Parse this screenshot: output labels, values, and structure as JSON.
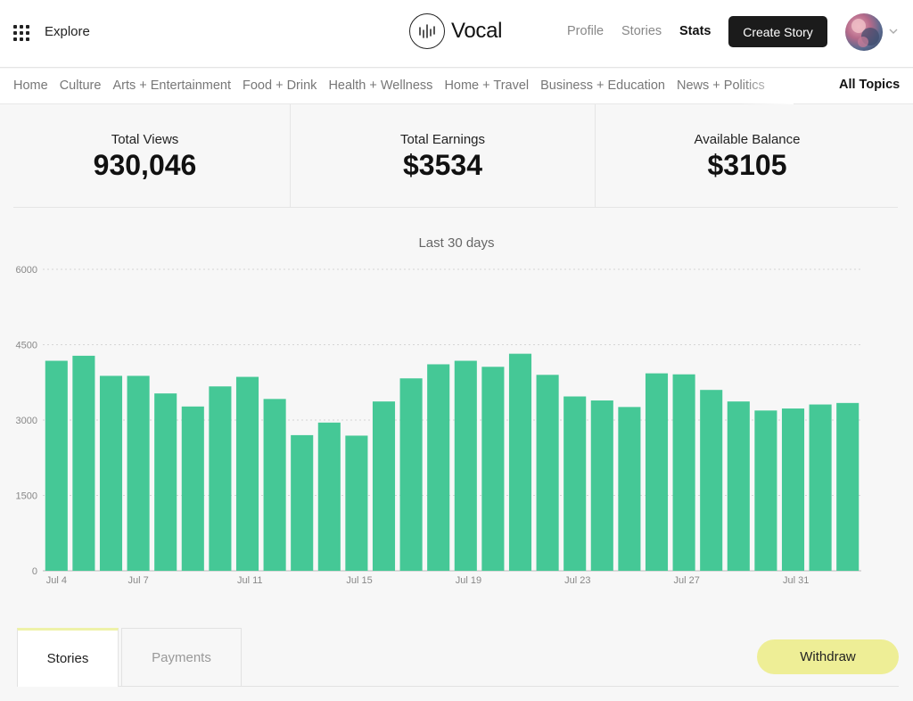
{
  "header": {
    "explore_label": "Explore",
    "logo_text": "Vocal",
    "nav": [
      {
        "label": "Profile"
      },
      {
        "label": "Stories"
      },
      {
        "label": "Stats"
      }
    ],
    "create_story_label": "Create Story"
  },
  "topics": {
    "items": [
      "Home",
      "Culture",
      "Arts + Entertainment",
      "Food + Drink",
      "Health + Wellness",
      "Home + Travel",
      "Business + Education",
      "News + Politics"
    ],
    "all_topics_label": "All Topics"
  },
  "stats": {
    "total_views": {
      "label": "Total Views",
      "value": "930,046"
    },
    "total_earnings": {
      "label": "Total Earnings",
      "value": "$3534"
    },
    "available_balance": {
      "label": "Available Balance",
      "value": "$3105"
    }
  },
  "chart_data": {
    "type": "bar",
    "title": "Last 30 days",
    "categories": [
      "Jul 4",
      "Jul 5",
      "Jul 6",
      "Jul 7",
      "Jul 8",
      "Jul 9",
      "Jul 10",
      "Jul 11",
      "Jul 12",
      "Jul 13",
      "Jul 14",
      "Jul 15",
      "Jul 16",
      "Jul 17",
      "Jul 18",
      "Jul 19",
      "Jul 20",
      "Jul 21",
      "Jul 22",
      "Jul 23",
      "Jul 24",
      "Jul 25",
      "Jul 26",
      "Jul 27",
      "Jul 28",
      "Jul 29",
      "Jul 30",
      "Jul 31",
      "Aug 1",
      "Aug 2"
    ],
    "values": [
      4180,
      4280,
      3880,
      3880,
      3530,
      3270,
      3670,
      3860,
      3420,
      2700,
      2950,
      2690,
      3370,
      3830,
      4110,
      4180,
      4060,
      4320,
      3900,
      3470,
      3390,
      3260,
      3930,
      3910,
      3600,
      3370,
      3190,
      3230,
      3310,
      3340
    ],
    "x_tick_labels": [
      "Jul 4",
      "Jul 7",
      "Jul 11",
      "Jul 15",
      "Jul 19",
      "Jul 23",
      "Jul 27",
      "Jul 31"
    ],
    "y_ticks": [
      0,
      1500,
      3000,
      4500,
      6000
    ],
    "ylim": [
      0,
      6000
    ],
    "grid": true,
    "color": "#45c896"
  },
  "tabs": {
    "stories_label": "Stories",
    "payments_label": "Payments"
  },
  "withdraw_label": "Withdraw",
  "colors": {
    "accent_green": "#45c896",
    "withdraw_yellow": "#eeee96",
    "create_button": "#1b1b1b"
  }
}
